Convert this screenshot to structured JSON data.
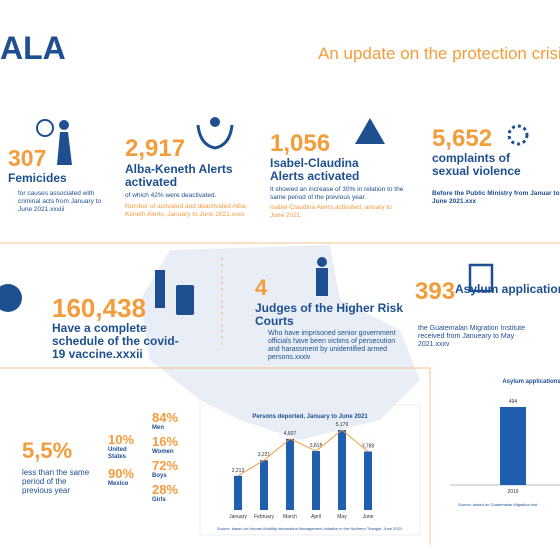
{
  "header": {
    "title": "ALA",
    "subtitle": "An update on the protection crisi"
  },
  "row1": [
    {
      "number": "307",
      "label": "Femicides",
      "note": "for causes associated with criminal acts from January to June 2021.xxxiii"
    },
    {
      "number": "2,917",
      "label": "Alba-Keneth Alerts activated",
      "note": "of which 42% were deactivated.",
      "source": "Number of activated and deactivated Alba-Keneth Alerts, January to June 2021.xxxv"
    },
    {
      "number": "1,056",
      "label": "Isabel-Claudina Alerts activated",
      "note": "It showed an increase of 30% in relation to the same period of the previous year.",
      "source": "Isabel-Claudina Alerts activated, anuary to June 2021."
    },
    {
      "number": "5,652",
      "label": "complaints of sexual violence",
      "note": "Before the Public Ministry from Januar to June 2021.xxx"
    }
  ],
  "row2": [
    {
      "number": "160,438",
      "label": "Have a complete schedule of the covid-19 vaccine.xxxii"
    },
    {
      "number": "4",
      "label": "Judges of the Higher Risk Courts",
      "note": "Who have imprisoned senior government officials have been victims of persecution and harassment by unidentified armed persons.xxxiv"
    },
    {
      "number": "393",
      "label": "Asylum applications",
      "note": "the Guatemalan Migration Institute received from Janueary to May 2021.xxxv"
    }
  ],
  "deportation": {
    "percent": "5,5%",
    "text": "less than the same period of the previous year",
    "countries": [
      {
        "value": "10%",
        "label": "United States"
      },
      {
        "value": "90%",
        "label": "Mexico"
      }
    ],
    "groups": [
      {
        "value": "84%",
        "label": "Men"
      },
      {
        "value": "16%",
        "label": "Women"
      },
      {
        "value": "72%",
        "label": "Boys"
      },
      {
        "value": "28%",
        "label": "Girls"
      }
    ]
  },
  "deported_chart": {
    "type": "bar",
    "title": "Persons deported, January to June 2021",
    "categories": [
      "January",
      "February",
      "March",
      "April",
      "May",
      "June"
    ],
    "values": [
      2213,
      3221,
      4607,
      3818,
      5179,
      3788
    ],
    "value_labels": [
      "2,213",
      "3,221",
      "4,607",
      "3,818",
      "5,179",
      "3,788"
    ],
    "color": "#1f5fae",
    "line_color": "#f39c3c",
    "source": "Source: based on Human Mobility Information Management Initiative in the Northern Triangle, June 2021."
  },
  "asylum_chart": {
    "type": "bar",
    "title": "Asylum applications in",
    "categories": [
      "2019"
    ],
    "values": [
      494
    ],
    "color": "#1f5fae",
    "source": "Source: based on Guatemalan Migration Inst"
  }
}
